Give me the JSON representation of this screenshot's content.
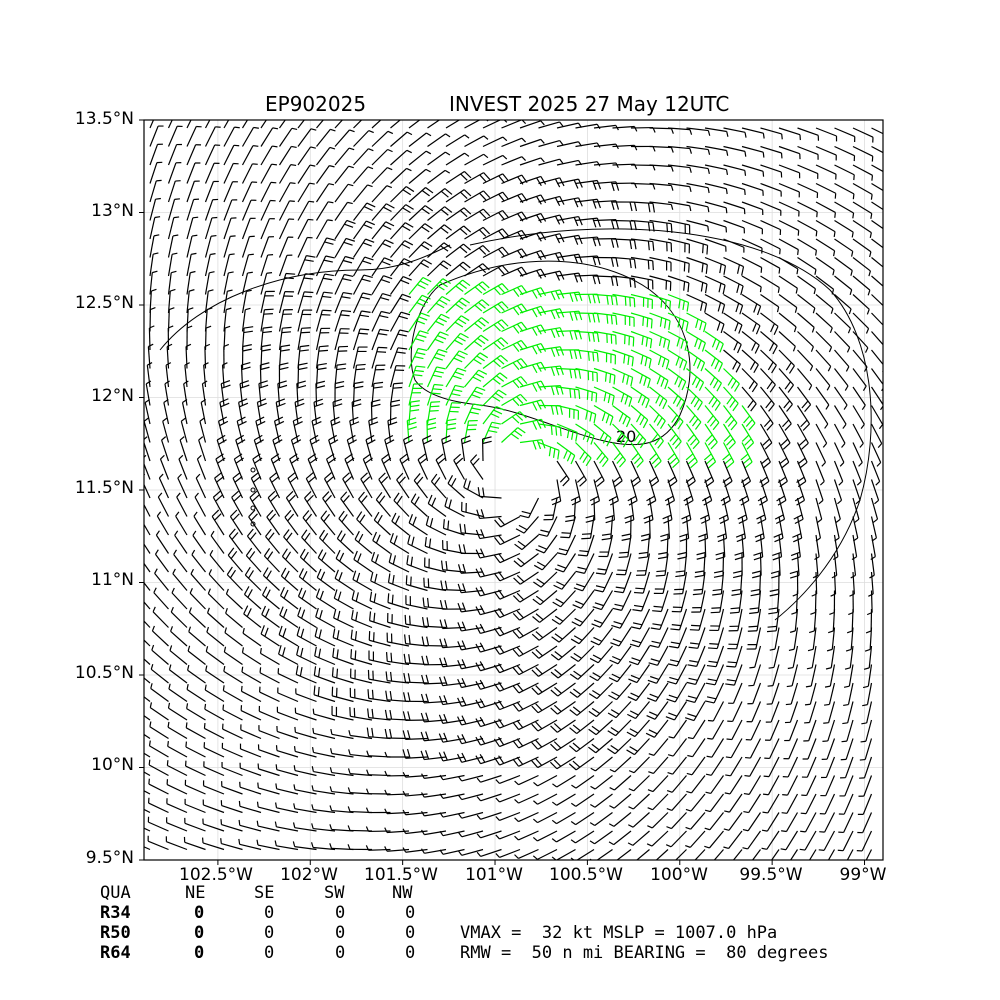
{
  "title": {
    "storm_id": "EP902025",
    "headline": "INVEST 2025 27 May 12UTC"
  },
  "map": {
    "lat_ticks": [
      "13.5°N",
      "13°N",
      "12.5°N",
      "12°N",
      "11.5°N",
      "11°N",
      "10.5°N",
      "10°N",
      "9.5°N"
    ],
    "lon_ticks": [
      "102.5°W",
      "102°W",
      "101.5°W",
      "101°W",
      "100.5°W",
      "100°W",
      "99.5°W",
      "99°W"
    ],
    "lat_range": [
      9.5,
      13.5
    ],
    "lon_range": [
      -102.9,
      -98.9
    ],
    "contour_label": "20",
    "center": {
      "lon": -100.9,
      "lat": 11.6
    },
    "barb_color_normal": "#000000",
    "barb_color_strong": "#00ee00",
    "grid": true
  },
  "table": {
    "headers": [
      "QUA",
      "NE",
      "SE",
      "SW",
      "NW"
    ],
    "rows": [
      {
        "label": "R34",
        "values": [
          "0",
          "0",
          "0",
          "0"
        ]
      },
      {
        "label": "R50",
        "values": [
          "0",
          "0",
          "0",
          "0"
        ]
      },
      {
        "label": "R64",
        "values": [
          "0",
          "0",
          "0",
          "0"
        ]
      }
    ]
  },
  "stats": {
    "line1": "VMAX =  32 kt MSLP = 1007.0 hPa",
    "line2": "RMW =  50 n mi BEARING =  80 degrees"
  }
}
